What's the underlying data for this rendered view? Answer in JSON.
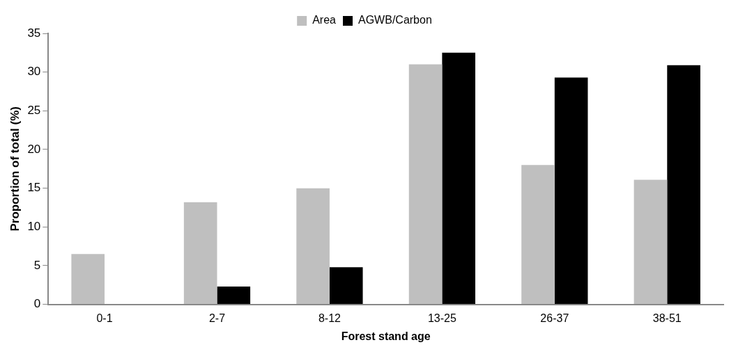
{
  "chart_data": {
    "type": "bar",
    "xlabel": "Forest stand age",
    "ylabel": "Proportion of total (%)",
    "categories": [
      "0-1",
      "2-7",
      "8-12",
      "13-25",
      "26-37",
      "38-51"
    ],
    "series": [
      {
        "name": "Area",
        "color": "#bfbfbf",
        "values": [
          6.5,
          13.2,
          15.0,
          31.0,
          18.0,
          16.1
        ]
      },
      {
        "name": "AGWB/Carbon",
        "color": "#000000",
        "values": [
          0,
          2.3,
          4.8,
          32.5,
          29.3,
          30.9
        ]
      }
    ],
    "ylim": [
      0,
      35
    ],
    "yticks": [
      0,
      5,
      10,
      15,
      20,
      25,
      30,
      35
    ],
    "grid": false,
    "legend": "top"
  }
}
